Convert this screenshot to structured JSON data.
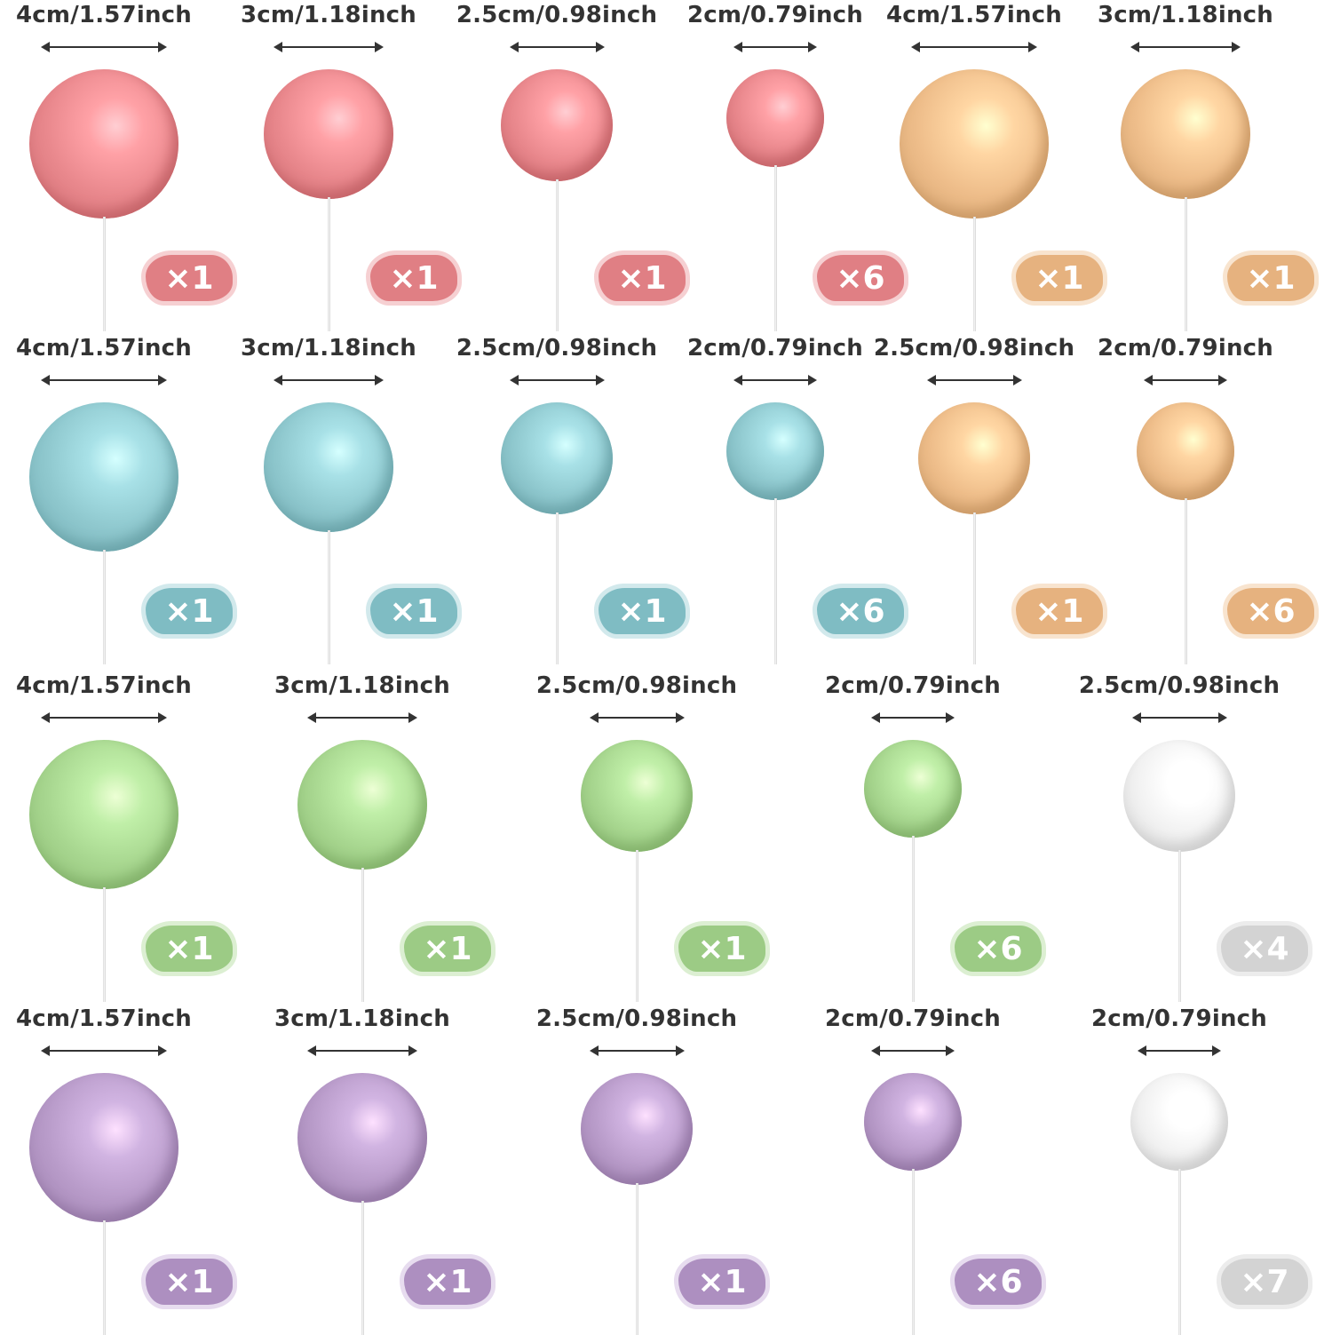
{
  "colors": {
    "pink": "#e9888d",
    "gold": "#eebd8a",
    "blue": "#8fc8ce",
    "green": "#a7d68f",
    "purple": "#b89bc9",
    "white": "#f1f1f1",
    "label": "#333333"
  },
  "rows": [
    [
      {
        "size": "4cm/1.57inch",
        "qty": "×1",
        "color": "pink"
      },
      {
        "size": "3cm/1.18inch",
        "qty": "×1",
        "color": "pink"
      },
      {
        "size": "2.5cm/0.98inch",
        "qty": "×1",
        "color": "pink"
      },
      {
        "size": "2cm/0.79inch",
        "qty": "×6",
        "color": "pink"
      },
      {
        "size": "4cm/1.57inch",
        "qty": "×1",
        "color": "gold"
      },
      {
        "size": "3cm/1.18inch",
        "qty": "×1",
        "color": "gold"
      }
    ],
    [
      {
        "size": "4cm/1.57inch",
        "qty": "×1",
        "color": "blue"
      },
      {
        "size": "3cm/1.18inch",
        "qty": "×1",
        "color": "blue"
      },
      {
        "size": "2.5cm/0.98inch",
        "qty": "×1",
        "color": "blue"
      },
      {
        "size": "2cm/0.79inch",
        "qty": "×6",
        "color": "blue"
      },
      {
        "size": "2.5cm/0.98inch",
        "qty": "×1",
        "color": "gold"
      },
      {
        "size": "2cm/0.79inch",
        "qty": "×6",
        "color": "gold"
      }
    ],
    [
      {
        "size": "4cm/1.57inch",
        "qty": "×1",
        "color": "green"
      },
      {
        "size": "3cm/1.18inch",
        "qty": "×1",
        "color": "green"
      },
      {
        "size": "2.5cm/0.98inch",
        "qty": "×1",
        "color": "green"
      },
      {
        "size": "2cm/0.79inch",
        "qty": "×6",
        "color": "green"
      },
      {
        "size": "2.5cm/0.98inch",
        "qty": "×4",
        "color": "white"
      }
    ],
    [
      {
        "size": "4cm/1.57inch",
        "qty": "×1",
        "color": "purple"
      },
      {
        "size": "3cm/1.18inch",
        "qty": "×1",
        "color": "purple"
      },
      {
        "size": "2.5cm/0.98inch",
        "qty": "×1",
        "color": "purple"
      },
      {
        "size": "2cm/0.79inch",
        "qty": "×6",
        "color": "purple"
      },
      {
        "size": "2cm/0.79inch",
        "qty": "×7",
        "color": "white"
      }
    ]
  ]
}
